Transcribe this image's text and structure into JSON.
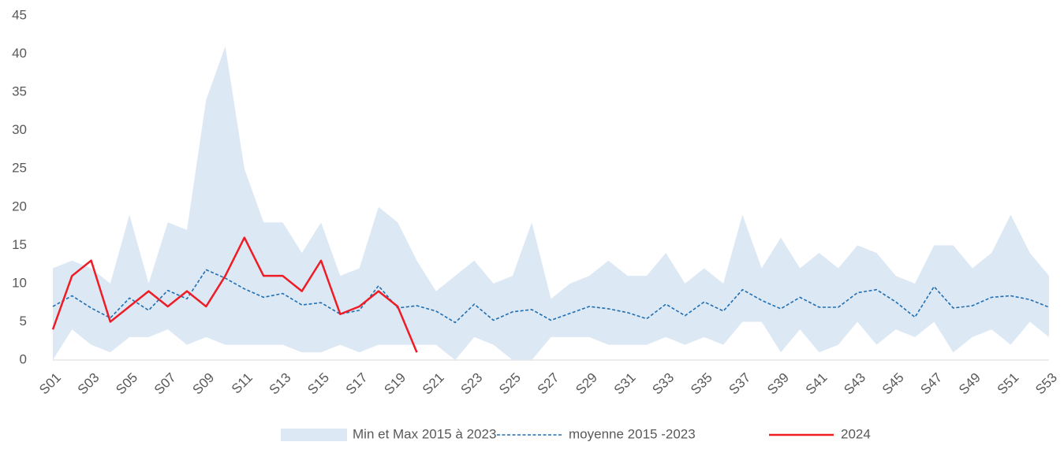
{
  "chart_data": {
    "type": "line",
    "categories": [
      "S01",
      null,
      "S03",
      null,
      "S05",
      null,
      "S07",
      null,
      "S09",
      null,
      "S11",
      null,
      "S13",
      null,
      "S15",
      null,
      "S17",
      null,
      "S19",
      null,
      "S21",
      null,
      "S23",
      null,
      "S25",
      null,
      "S27",
      null,
      "S29",
      null,
      "S31",
      null,
      "S33",
      null,
      "S35",
      null,
      "S37",
      null,
      "S39",
      null,
      "S41",
      null,
      "S43",
      null,
      "S45",
      null,
      "S47",
      null,
      "S49",
      null,
      "S51",
      null,
      "S53"
    ],
    "series": [
      {
        "name": "Min et Max 2015 à 2023",
        "color": "#dde8f5",
        "style": "band",
        "max": [
          12,
          13,
          12,
          10,
          19,
          10,
          18,
          17,
          34,
          41,
          25,
          18,
          18,
          14,
          18,
          11,
          12,
          20,
          18,
          13,
          9,
          11,
          13,
          10,
          11,
          18,
          8,
          10,
          11,
          13,
          11,
          11,
          14,
          10,
          12,
          10,
          19,
          12,
          16,
          12,
          14,
          12,
          15,
          14,
          11,
          10,
          15,
          15,
          12,
          14,
          19,
          14,
          11
        ],
        "min": [
          0,
          4,
          2,
          1,
          3,
          3,
          4,
          2,
          3,
          2,
          2,
          2,
          2,
          1,
          1,
          2,
          1,
          2,
          2,
          2,
          2,
          0,
          3,
          2,
          0,
          0,
          3,
          3,
          3,
          2,
          2,
          2,
          3,
          2,
          3,
          2,
          5,
          5,
          1,
          4,
          1,
          2,
          5,
          2,
          4,
          3,
          5,
          1,
          3,
          4,
          2,
          5,
          3
        ]
      },
      {
        "name": "moyenne 2015 -2023",
        "color": "#1f6fb2",
        "style": "dashed",
        "values": [
          7,
          8.4,
          6.8,
          5.5,
          8.1,
          6.5,
          9.1,
          8,
          11.8,
          10.7,
          9.3,
          8.2,
          8.7,
          7.2,
          7.5,
          6,
          6.5,
          9.7,
          6.8,
          7.1,
          6.4,
          4.9,
          7.3,
          5.2,
          6.3,
          6.6,
          5.2,
          6.1,
          7,
          6.7,
          6.2,
          5.4,
          7.3,
          5.8,
          7.6,
          6.4,
          9.2,
          7.8,
          6.7,
          8.2,
          6.9,
          6.9,
          8.8,
          9.2,
          7.6,
          5.6,
          9.6,
          6.8,
          7.1,
          8.2,
          8.4,
          7.9,
          6.9
        ]
      },
      {
        "name": "2024",
        "color": "#ee1c25",
        "style": "solid",
        "values": [
          4,
          11,
          13,
          5,
          7,
          9,
          7,
          9,
          7,
          11,
          16,
          11,
          11,
          9,
          13,
          6,
          7,
          9,
          7,
          1,
          null,
          null,
          null,
          null,
          null,
          null,
          null,
          null,
          null,
          null,
          null,
          null,
          null,
          null,
          null,
          null,
          null,
          null,
          null,
          null,
          null,
          null,
          null,
          null,
          null,
          null,
          null,
          null,
          null,
          null,
          null,
          null,
          null
        ]
      }
    ],
    "ylim": [
      0,
      45
    ],
    "yticks": [
      0,
      5,
      10,
      15,
      20,
      25,
      30,
      35,
      40,
      45
    ],
    "grid": false,
    "legend": "bottom"
  }
}
